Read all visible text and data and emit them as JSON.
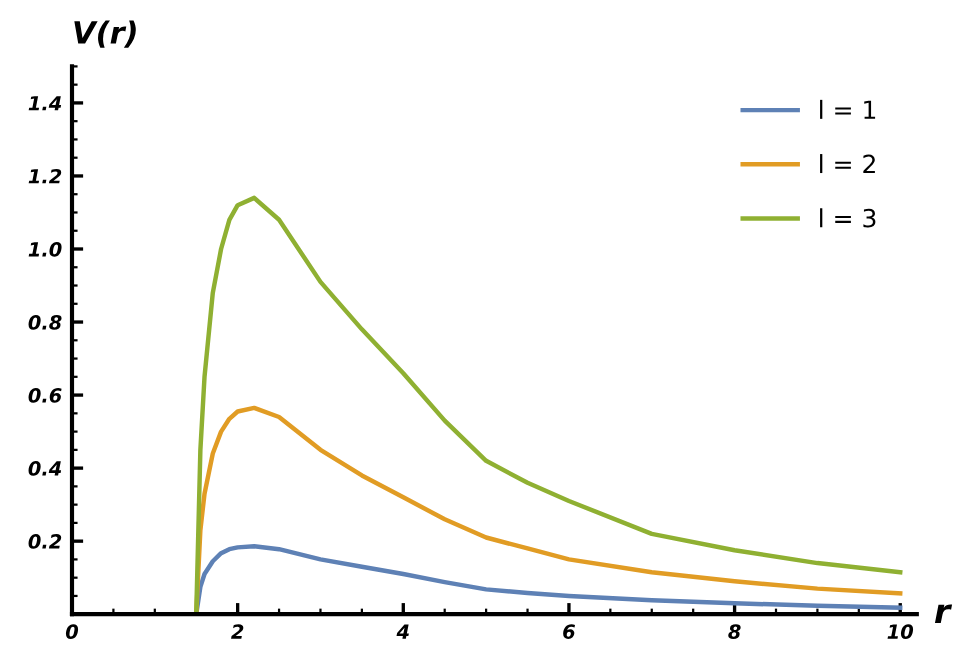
{
  "chart_data": {
    "type": "line",
    "xlabel": "r",
    "ylabel": "V(r)",
    "xlim": [
      0,
      10.2
    ],
    "ylim": [
      0,
      1.5
    ],
    "xticks": [
      0,
      2,
      4,
      6,
      8,
      10
    ],
    "yticks": [
      0.2,
      0.4,
      0.6,
      0.8,
      {
        "value": 1.0,
        "label": "1.0"
      },
      1.2,
      1.4
    ],
    "legend": "top right",
    "grid": false,
    "marker": "none",
    "line_style": "solid",
    "series": [
      {
        "name": "l = 1",
        "color": "#5e81b5",
        "x": [
          1.5,
          1.55,
          1.6,
          1.7,
          1.8,
          1.9,
          2.0,
          2.2,
          2.5,
          3,
          3.5,
          4,
          4.5,
          5,
          5.5,
          6,
          7,
          8,
          9,
          10
        ],
        "values": [
          0,
          0.075,
          0.11,
          0.145,
          0.167,
          0.178,
          0.183,
          0.186,
          0.178,
          0.15,
          0.13,
          0.11,
          0.088,
          0.068,
          0.058,
          0.05,
          0.038,
          0.03,
          0.023,
          0.018
        ]
      },
      {
        "name": "l = 2",
        "color": "#e19c24",
        "x": [
          1.5,
          1.55,
          1.6,
          1.7,
          1.8,
          1.9,
          2.0,
          2.2,
          2.5,
          3,
          3.5,
          4,
          4.5,
          5,
          5.5,
          6,
          7,
          8,
          9,
          10
        ],
        "values": [
          0,
          0.23,
          0.33,
          0.44,
          0.5,
          0.535,
          0.555,
          0.565,
          0.54,
          0.45,
          0.38,
          0.32,
          0.26,
          0.21,
          0.18,
          0.15,
          0.115,
          0.09,
          0.07,
          0.057
        ]
      },
      {
        "name": "l = 3",
        "color": "#8fb032",
        "x": [
          1.5,
          1.55,
          1.6,
          1.7,
          1.8,
          1.9,
          2.0,
          2.2,
          2.5,
          3,
          3.5,
          4,
          4.5,
          5,
          5.5,
          6,
          7,
          8,
          9,
          10
        ],
        "values": [
          0,
          0.45,
          0.65,
          0.88,
          1.0,
          1.08,
          1.12,
          1.14,
          1.08,
          0.91,
          0.78,
          0.66,
          0.53,
          0.42,
          0.36,
          0.31,
          0.22,
          0.175,
          0.14,
          0.115
        ]
      }
    ]
  }
}
